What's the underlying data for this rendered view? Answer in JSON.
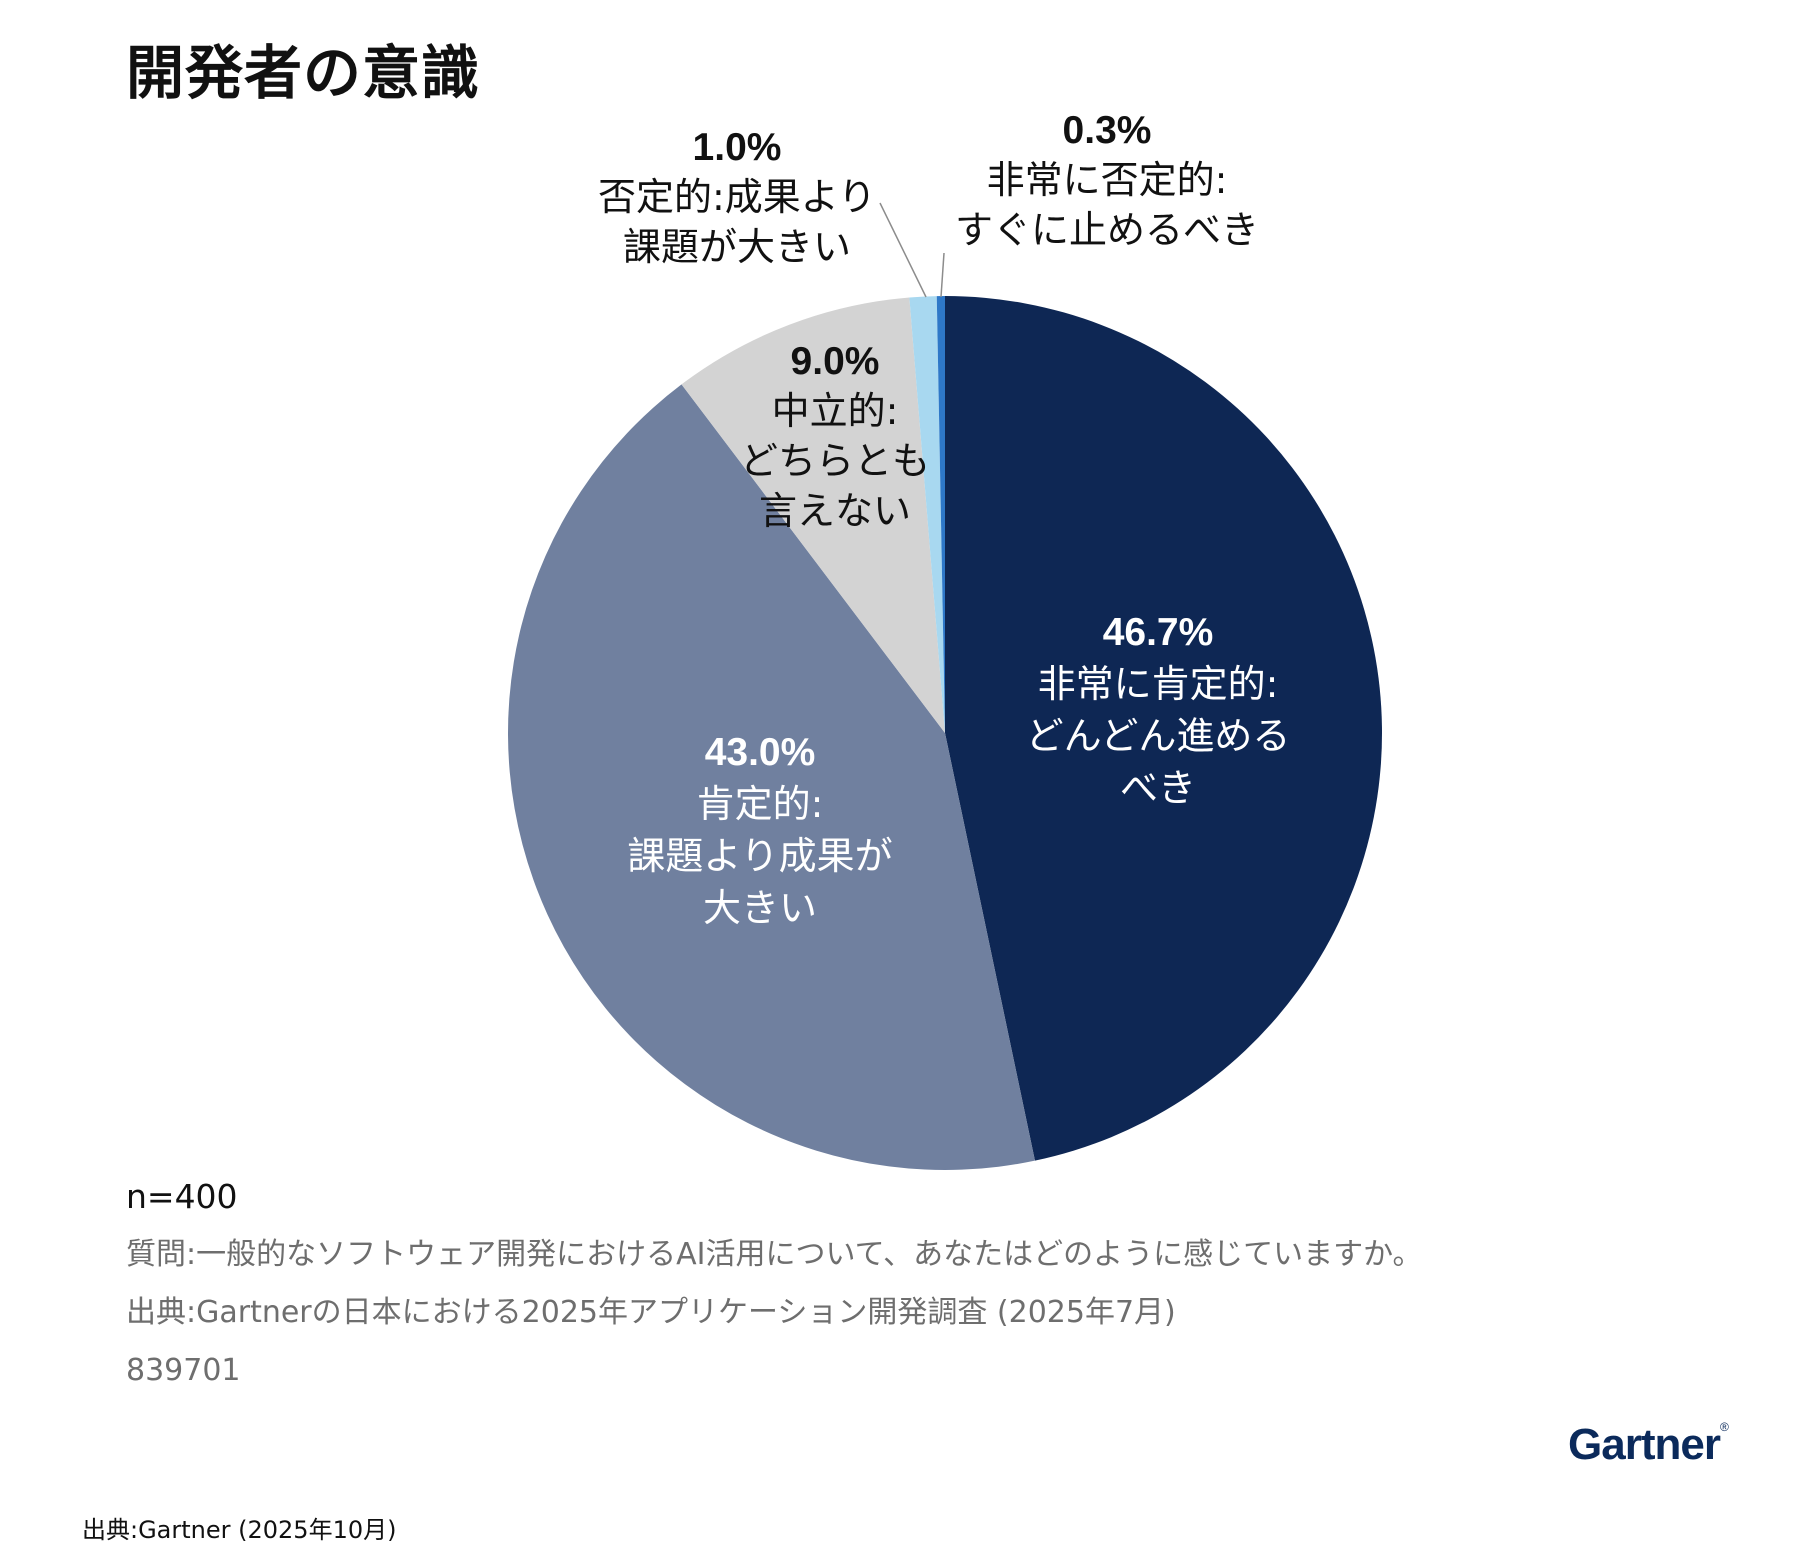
{
  "title": "開発者の意識",
  "chart_data": {
    "type": "pie",
    "start_angle_deg": 0,
    "direction": "clockwise",
    "slices": [
      {
        "value": 46.7,
        "pct_label": "46.7%",
        "label_lines": [
          "非常に肯定的:",
          "どんどん進めるべき",
          ""
        ],
        "label_lines_display": [
          "非常に肯定的:",
          "どんどん進める",
          "べき"
        ],
        "color": "#0e2754",
        "label_color": "#ffffff"
      },
      {
        "value": 43.0,
        "pct_label": "43.0%",
        "label_lines_display": [
          "肯定的:",
          "課題より成果が",
          "大きい"
        ],
        "color": "#70809f",
        "label_color": "#ffffff"
      },
      {
        "value": 9.0,
        "pct_label": "9.0%",
        "label_lines_display": [
          "中立的:",
          "どちらとも",
          "言えない"
        ],
        "color": "#d3d3d3",
        "label_color": "#111111"
      },
      {
        "value": 1.0,
        "pct_label": "1.0%",
        "label_lines_display": [
          "否定的:成果より",
          "課題が大きい"
        ],
        "color": "#a8d8f0",
        "label_color": "#111111"
      },
      {
        "value": 0.3,
        "pct_label": "0.3%",
        "label_lines_display": [
          "非常に否定的:",
          "すぐに止めるべき"
        ],
        "color": "#2e78c8",
        "label_color": "#111111"
      }
    ]
  },
  "notes": {
    "n": "n=400",
    "question": "質問:一般的なソフトウェア開発におけるAI活用について、あなたはどのように感じていますか。",
    "source": "出典:Gartnerの日本における2025年アプリケーション開発調査 (2025年7月)",
    "id": "839701"
  },
  "logo": "Gartner",
  "footer": "出典:Gartner (2025年10月)"
}
